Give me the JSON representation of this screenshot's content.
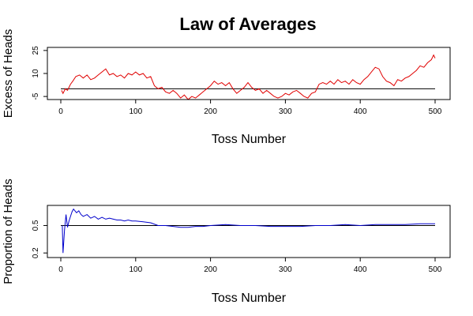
{
  "title": "Law of Averages",
  "chart_data": [
    {
      "type": "line",
      "xlabel": "Toss Number",
      "ylabel": "Excess of Heads",
      "xlim": [
        0,
        500
      ],
      "ylim": [
        -7,
        27
      ],
      "x_ticks": [
        0,
        100,
        200,
        300,
        400,
        500
      ],
      "y_ticks": [
        -5,
        10,
        25
      ],
      "reference_y": 0,
      "series_color": "#e00000",
      "x": [
        1,
        3,
        6,
        9,
        13,
        16,
        20,
        25,
        30,
        35,
        40,
        45,
        50,
        55,
        60,
        65,
        70,
        75,
        80,
        85,
        90,
        95,
        100,
        105,
        110,
        115,
        120,
        125,
        130,
        135,
        140,
        145,
        150,
        155,
        160,
        165,
        170,
        175,
        180,
        185,
        190,
        195,
        200,
        205,
        210,
        215,
        220,
        225,
        230,
        235,
        240,
        245,
        250,
        255,
        260,
        265,
        270,
        275,
        280,
        285,
        290,
        295,
        300,
        305,
        310,
        315,
        320,
        325,
        330,
        335,
        340,
        345,
        350,
        355,
        360,
        365,
        370,
        375,
        380,
        385,
        390,
        395,
        400,
        405,
        410,
        415,
        420,
        425,
        430,
        435,
        440,
        445,
        450,
        455,
        460,
        465,
        470,
        475,
        480,
        485,
        490,
        495,
        498,
        500
      ],
      "y": [
        -1,
        -3,
        0,
        -1,
        3,
        5,
        8,
        9,
        7,
        9,
        6,
        7,
        9,
        11,
        13,
        9,
        10,
        8,
        9,
        7,
        10,
        9,
        11,
        9,
        10,
        7,
        8,
        2,
        0,
        1,
        -2,
        -3,
        -1,
        -3,
        -6,
        -4,
        -7,
        -5,
        -6,
        -4,
        -2,
        0,
        2,
        5,
        3,
        4,
        2,
        4,
        0,
        -3,
        -1,
        1,
        4,
        1,
        -1,
        0,
        -3,
        -1,
        -3,
        -5,
        -6,
        -5,
        -3,
        -4,
        -2,
        -1,
        -3,
        -5,
        -6,
        -3,
        -2,
        3,
        4,
        3,
        5,
        3,
        6,
        4,
        5,
        3,
        6,
        4,
        3,
        6,
        8,
        11,
        14,
        13,
        8,
        5,
        4,
        2,
        6,
        5,
        7,
        8,
        10,
        12,
        15,
        14,
        17,
        19,
        22,
        20
      ]
    },
    {
      "type": "line",
      "xlabel": "Toss Number",
      "ylabel": "Proportion of Heads",
      "xlim": [
        0,
        500
      ],
      "ylim": [
        0.15,
        0.72
      ],
      "x_ticks": [
        0,
        100,
        200,
        300,
        400,
        500
      ],
      "y_ticks": [
        0.2,
        0.5
      ],
      "reference_y": 0.5,
      "series_color": "#0000cc",
      "x": [
        2,
        3,
        5,
        7,
        9,
        11,
        13,
        15,
        17,
        19,
        21,
        24,
        27,
        30,
        35,
        40,
        45,
        50,
        55,
        60,
        65,
        70,
        75,
        80,
        85,
        90,
        95,
        100,
        110,
        120,
        130,
        140,
        150,
        160,
        170,
        180,
        190,
        200,
        220,
        240,
        260,
        280,
        300,
        320,
        340,
        360,
        380,
        400,
        420,
        440,
        460,
        480,
        500
      ],
      "y": [
        0.5,
        0.2,
        0.45,
        0.62,
        0.48,
        0.55,
        0.6,
        0.65,
        0.68,
        0.66,
        0.64,
        0.66,
        0.62,
        0.6,
        0.62,
        0.58,
        0.6,
        0.57,
        0.59,
        0.57,
        0.58,
        0.57,
        0.56,
        0.56,
        0.55,
        0.56,
        0.55,
        0.55,
        0.54,
        0.53,
        0.5,
        0.5,
        0.49,
        0.48,
        0.48,
        0.49,
        0.49,
        0.5,
        0.51,
        0.5,
        0.5,
        0.49,
        0.49,
        0.49,
        0.5,
        0.5,
        0.51,
        0.5,
        0.51,
        0.51,
        0.51,
        0.52,
        0.52
      ]
    }
  ]
}
